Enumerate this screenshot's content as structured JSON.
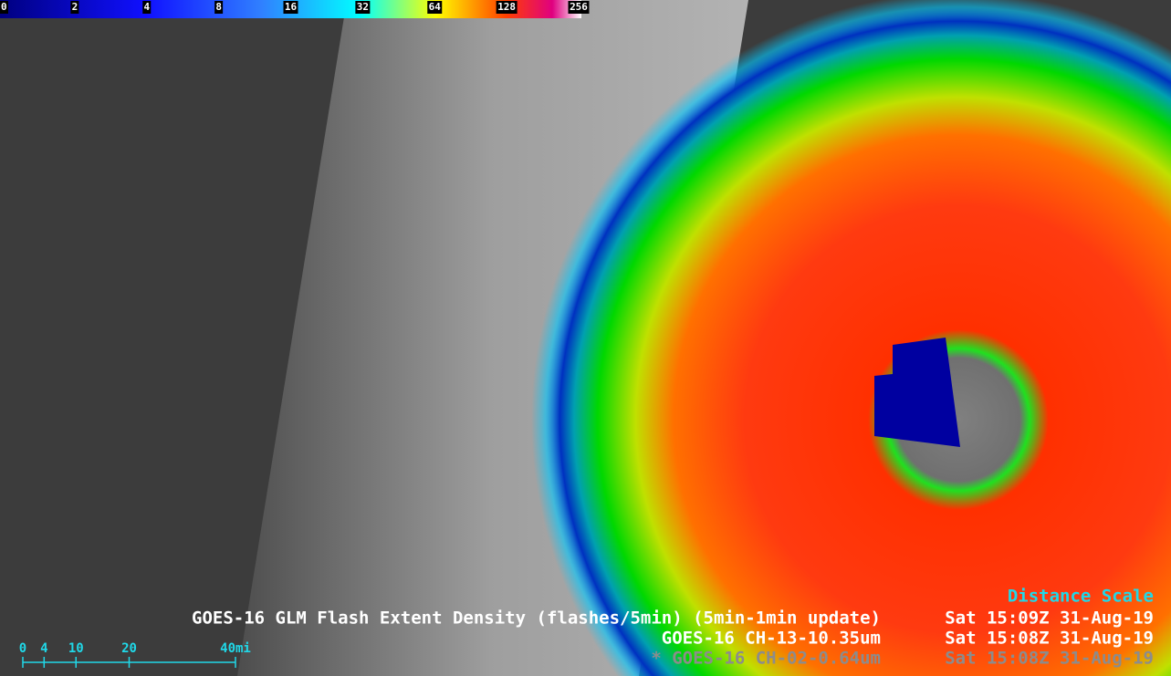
{
  "colorbar": {
    "labels": [
      0,
      2,
      4,
      8,
      16,
      32,
      64,
      128,
      256
    ]
  },
  "products": [
    {
      "name": "GOES-16 GLM Flash Extent Density (flashes/5min) (5min-1min update)",
      "time": "Sat 15:09Z 31-Aug-19"
    },
    {
      "name": "GOES-16 CH-13-10.35um",
      "time": "Sat 15:08Z 31-Aug-19"
    },
    {
      "name": "* GOES-16 CH-02-0.64um",
      "time": "Sat 15:08Z 31-Aug-19"
    }
  ],
  "distance_scale": {
    "title": "Distance Scale",
    "ticks": [
      0,
      4,
      10,
      20,
      {
        "value": 40,
        "label": "40mi"
      }
    ]
  }
}
